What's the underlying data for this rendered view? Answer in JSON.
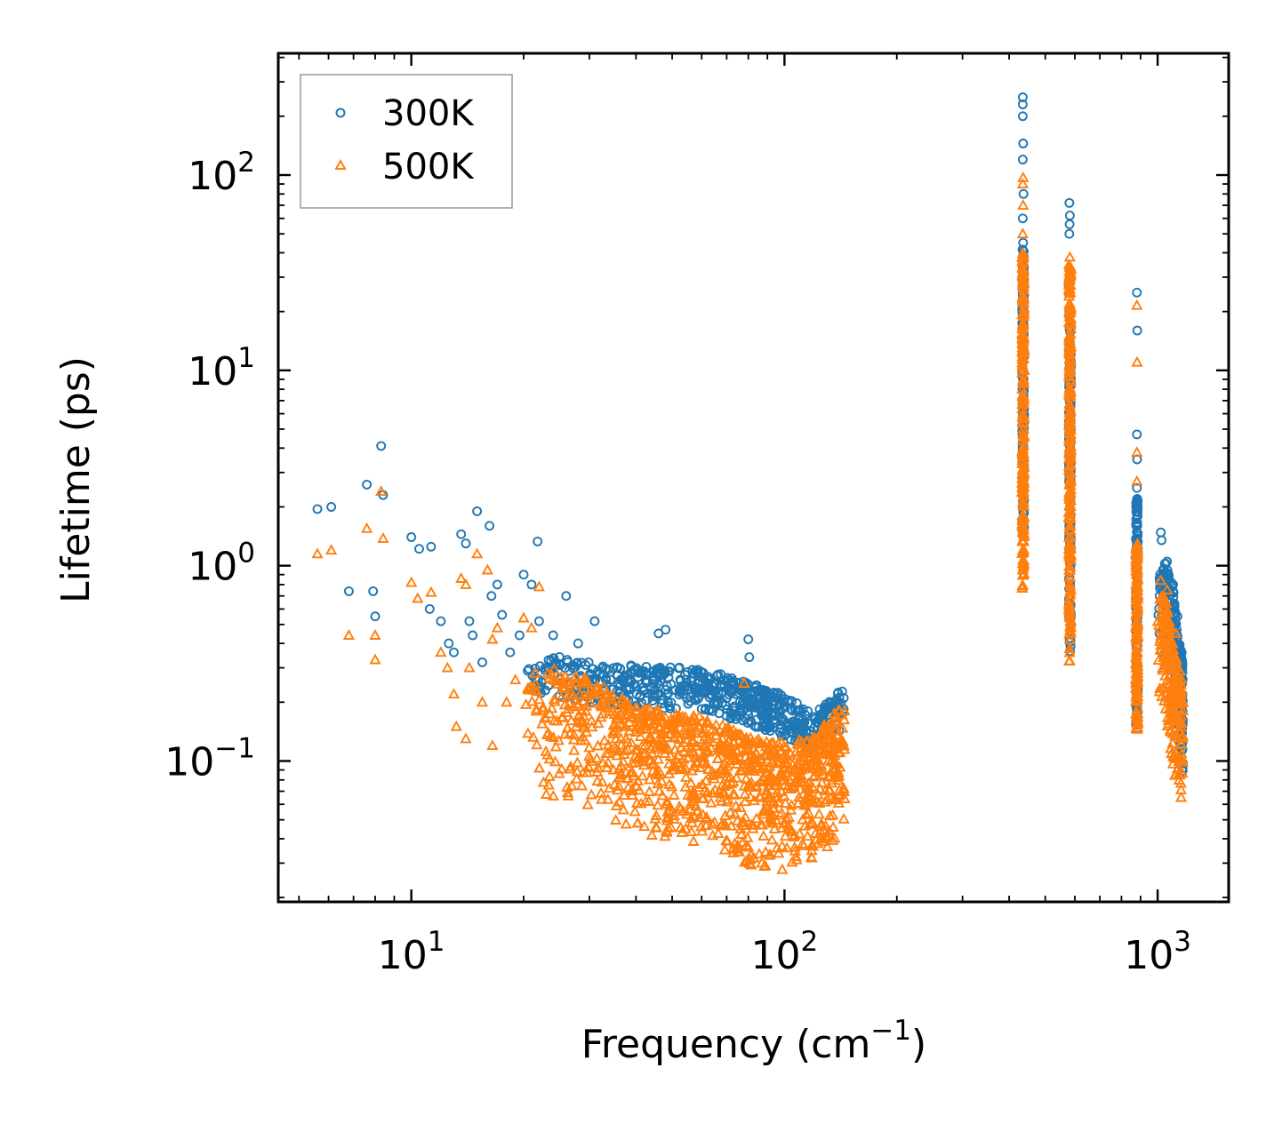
{
  "chart_data": {
    "type": "scatter",
    "xlabel": "Frequency (cm",
    "xlabel_sup": "−1",
    "xlabel_end": ")",
    "ylabel": "Lifetime (ps)",
    "xscale": "log",
    "yscale": "log",
    "xlim": [
      4.4,
      1550
    ],
    "ylim": [
      0.019,
      420
    ],
    "grid": false,
    "legend_position": "top-left",
    "xticks": [
      {
        "value": 10,
        "base": "10",
        "exp": "1"
      },
      {
        "value": 100,
        "base": "10",
        "exp": "2"
      },
      {
        "value": 1000,
        "base": "10",
        "exp": "3"
      }
    ],
    "yticks": [
      {
        "value": 0.1,
        "base": "10",
        "exp": "−1"
      },
      {
        "value": 1,
        "base": "10",
        "exp": "0"
      },
      {
        "value": 10,
        "base": "10",
        "exp": "1"
      },
      {
        "value": 100,
        "base": "10",
        "exp": "2"
      }
    ],
    "series": [
      {
        "name": "300K",
        "marker": "circle",
        "color": "#1f77b4",
        "points": [
          [
            5.6,
            1.95
          ],
          [
            6.1,
            2.0
          ],
          [
            6.8,
            0.74
          ],
          [
            7.6,
            2.6
          ],
          [
            7.9,
            0.74
          ],
          [
            8.0,
            0.55
          ],
          [
            8.3,
            4.1
          ],
          [
            8.4,
            2.3
          ],
          [
            10.0,
            1.4
          ],
          [
            10.5,
            1.22
          ],
          [
            11.3,
            1.25
          ],
          [
            11.2,
            0.6
          ],
          [
            12.0,
            0.52
          ],
          [
            12.6,
            0.4
          ],
          [
            13.0,
            0.36
          ],
          [
            13.6,
            1.45
          ],
          [
            14.0,
            1.3
          ],
          [
            14.3,
            0.52
          ],
          [
            14.6,
            0.44
          ],
          [
            15.0,
            1.9
          ],
          [
            15.5,
            0.32
          ],
          [
            16.2,
            1.6
          ],
          [
            16.4,
            0.7
          ],
          [
            17.0,
            0.8
          ],
          [
            17.5,
            0.56
          ],
          [
            18.4,
            0.36
          ],
          [
            19.5,
            0.44
          ],
          [
            20.0,
            0.9
          ],
          [
            21.0,
            0.8
          ],
          [
            21.8,
            1.33
          ],
          [
            22.0,
            0.52
          ],
          [
            24.0,
            0.44
          ],
          [
            26.0,
            0.7
          ],
          [
            28.0,
            0.4
          ],
          [
            31.0,
            0.52
          ],
          [
            46.0,
            0.45
          ],
          [
            48.0,
            0.47
          ],
          [
            80.0,
            0.42
          ],
          [
            80.5,
            0.34
          ],
          [
            435,
            250
          ],
          [
            435,
            230
          ],
          [
            435,
            200
          ],
          [
            436,
            145
          ],
          [
            435,
            120
          ],
          [
            437,
            80
          ],
          [
            435,
            60
          ],
          [
            436,
            45
          ],
          [
            580,
            72
          ],
          [
            582,
            62
          ],
          [
            581,
            56
          ],
          [
            580,
            50
          ],
          [
            578,
            27
          ],
          [
            580,
            20
          ],
          [
            582,
            14
          ],
          [
            581,
            10
          ],
          [
            880,
            25
          ],
          [
            882,
            16
          ],
          [
            880,
            4.7
          ],
          [
            881,
            3.5
          ],
          [
            880,
            2.5
          ],
          [
            882,
            1.8
          ],
          [
            1020,
            1.48
          ],
          [
            1025,
            1.35
          ],
          [
            1060,
            1.05
          ],
          [
            1100,
            0.8
          ],
          [
            1130,
            0.55
          ],
          [
            1160,
            0.36
          ]
        ],
        "dense_bands": [
          {
            "x_start": 20,
            "x_end": 145,
            "y_shape": [
              [
                20,
                0.32
              ],
              [
                30,
                0.28
              ],
              [
                40,
                0.27
              ],
              [
                60,
                0.26
              ],
              [
                80,
                0.22
              ],
              [
                100,
                0.19
              ],
              [
                120,
                0.15
              ],
              [
                140,
                0.2
              ]
            ],
            "spread_lo": 0.7,
            "spread_hi": 1.15,
            "count": 650
          },
          {
            "x": 436,
            "y_min": 1.5,
            "y_max": 42,
            "count": 190
          },
          {
            "x": 582,
            "y_min": 0.32,
            "y_max": 20,
            "count": 190
          },
          {
            "x": 880,
            "y_min": 0.15,
            "y_max": 2.2,
            "count": 150
          },
          {
            "x_start": 1000,
            "x_end": 1170,
            "y_shape": [
              [
                1000,
                0.85
              ],
              [
                1050,
                0.95
              ],
              [
                1100,
                0.7
              ],
              [
                1170,
                0.28
              ]
            ],
            "spread_lo": 0.3,
            "spread_hi": 1.1,
            "count": 200
          }
        ]
      },
      {
        "name": "500K",
        "marker": "triangle",
        "color": "#ff7f0e",
        "points": [
          [
            5.6,
            1.15
          ],
          [
            6.1,
            1.2
          ],
          [
            6.8,
            0.44
          ],
          [
            7.6,
            1.55
          ],
          [
            8.0,
            0.44
          ],
          [
            8.0,
            0.33
          ],
          [
            8.3,
            2.4
          ],
          [
            8.4,
            1.38
          ],
          [
            10.0,
            0.82
          ],
          [
            10.4,
            0.68
          ],
          [
            11.3,
            0.73
          ],
          [
            12.0,
            0.36
          ],
          [
            12.5,
            0.3
          ],
          [
            13.0,
            0.22
          ],
          [
            13.6,
            0.86
          ],
          [
            14.0,
            0.8
          ],
          [
            14.3,
            0.3
          ],
          [
            15.0,
            1.15
          ],
          [
            15.5,
            0.2
          ],
          [
            16.0,
            0.95
          ],
          [
            16.5,
            0.42
          ],
          [
            17.0,
            0.48
          ],
          [
            18.0,
            0.2
          ],
          [
            19.0,
            0.26
          ],
          [
            20.0,
            0.54
          ],
          [
            21.0,
            0.48
          ],
          [
            22.0,
            0.78
          ],
          [
            24.0,
            0.26
          ],
          [
            13.2,
            0.15
          ],
          [
            14.0,
            0.13
          ],
          [
            16.5,
            0.12
          ],
          [
            78.0,
            0.25
          ],
          [
            436,
            97
          ],
          [
            435,
            90
          ],
          [
            436,
            70
          ],
          [
            435,
            50
          ],
          [
            582,
            38
          ],
          [
            580,
            30
          ],
          [
            581,
            22
          ],
          [
            880,
            21.5
          ],
          [
            881,
            11
          ],
          [
            880,
            3.8
          ],
          [
            880,
            2.7
          ],
          [
            1020,
            0.84
          ],
          [
            1060,
            0.75
          ],
          [
            1120,
            0.45
          ]
        ],
        "dense_bands": [
          {
            "x_start": 20,
            "x_end": 145,
            "y_shape": [
              [
                20,
                0.17
              ],
              [
                30,
                0.14
              ],
              [
                40,
                0.1
              ],
              [
                60,
                0.09
              ],
              [
                80,
                0.07
              ],
              [
                100,
                0.065
              ],
              [
                120,
                0.07
              ],
              [
                140,
                0.1
              ]
            ],
            "spread_lo": 0.42,
            "spread_hi": 1.9,
            "count": 1100
          },
          {
            "x": 436,
            "y_min": 0.76,
            "y_max": 40,
            "count": 230
          },
          {
            "x": 582,
            "y_min": 0.31,
            "y_max": 35,
            "count": 230
          },
          {
            "x": 880,
            "y_min": 0.14,
            "y_max": 1.3,
            "count": 160
          },
          {
            "x_start": 1000,
            "x_end": 1170,
            "y_shape": [
              [
                1000,
                0.6
              ],
              [
                1050,
                0.55
              ],
              [
                1100,
                0.32
              ],
              [
                1170,
                0.2
              ]
            ],
            "spread_lo": 0.28,
            "spread_hi": 1.25,
            "count": 220
          }
        ]
      }
    ]
  }
}
